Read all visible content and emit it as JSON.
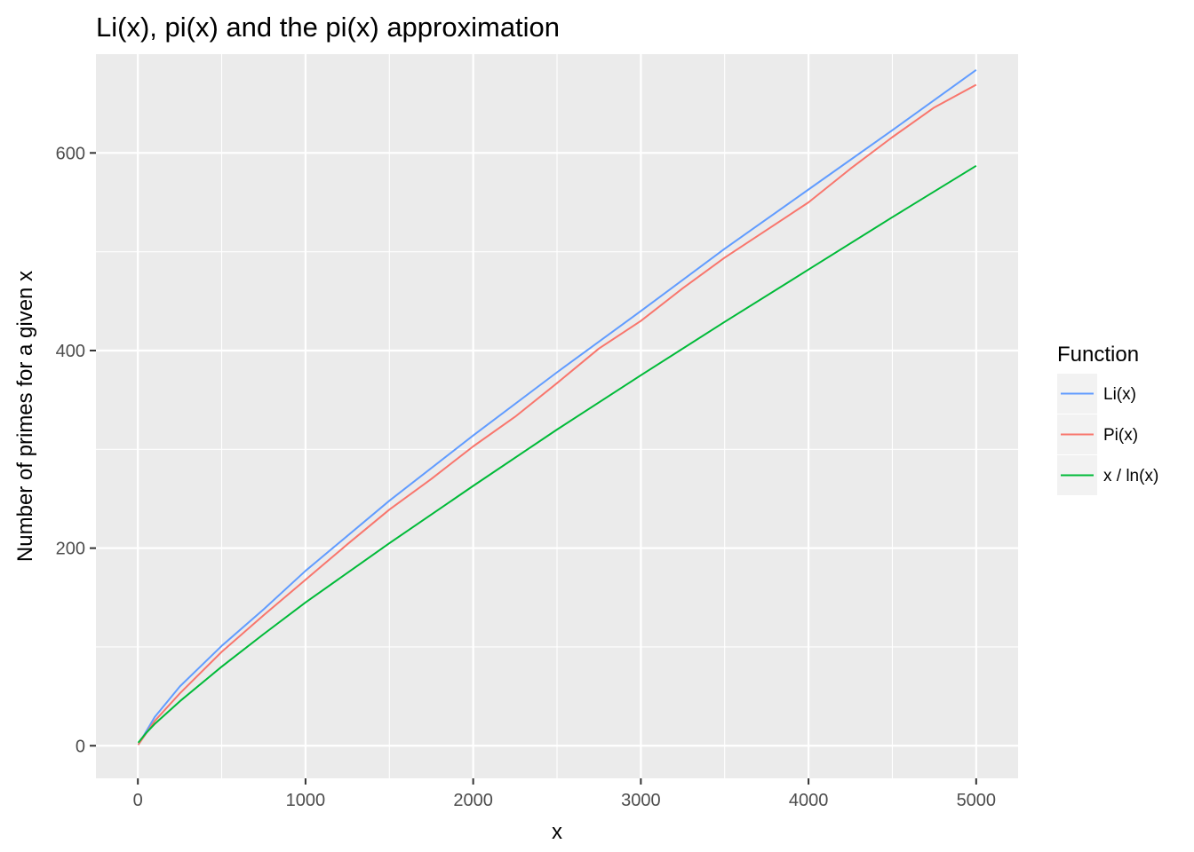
{
  "chart_data": {
    "type": "line",
    "title": "Li(x), pi(x) and the pi(x) approximation",
    "xlabel": "x",
    "ylabel": "Number of primes for a given x",
    "xlim": [
      -250,
      5250
    ],
    "ylim": [
      -33,
      700
    ],
    "x_ticks": [
      0,
      1000,
      2000,
      3000,
      4000,
      5000
    ],
    "x_tick_labels": [
      "0",
      "1000",
      "2000",
      "3000",
      "4000",
      "5000"
    ],
    "y_ticks": [
      0,
      200,
      400,
      600
    ],
    "y_tick_labels": [
      "0",
      "200",
      "400",
      "600"
    ],
    "grid": true,
    "background": "#ebebeb",
    "legend": {
      "title": "Function",
      "position": "right",
      "entries": [
        "Li(x)",
        "Pi(x)",
        "x / ln(x)"
      ]
    },
    "series": [
      {
        "name": "Li(x)",
        "color": "#619cff",
        "x": [
          2,
          100,
          250,
          500,
          750,
          1000,
          1500,
          2000,
          2500,
          3000,
          3500,
          4000,
          4500,
          5000
        ],
        "y": [
          1,
          29,
          60,
          101,
          138,
          177,
          248,
          314,
          378,
          440,
          503,
          563,
          623,
          684
        ]
      },
      {
        "name": "Pi(x)",
        "color": "#f8766d",
        "x": [
          2,
          100,
          250,
          500,
          750,
          1000,
          1250,
          1500,
          1750,
          2000,
          2250,
          2500,
          2750,
          3000,
          3250,
          3500,
          3750,
          4000,
          4250,
          4500,
          4750,
          5000
        ],
        "y": [
          1,
          25,
          53,
          95,
          132,
          168,
          204,
          239,
          270,
          303,
          333,
          367,
          402,
          430,
          463,
          494,
          522,
          550,
          584,
          616,
          646,
          669
        ]
      },
      {
        "name": "x / ln(x)",
        "color": "#00ba38",
        "x": [
          2,
          50,
          100,
          250,
          500,
          750,
          1000,
          1500,
          2000,
          2500,
          3000,
          3500,
          4000,
          4500,
          5000
        ],
        "y": [
          3,
          13,
          22,
          45,
          80,
          113,
          145,
          205,
          263,
          320,
          375,
          429,
          482,
          535,
          587
        ]
      }
    ]
  }
}
